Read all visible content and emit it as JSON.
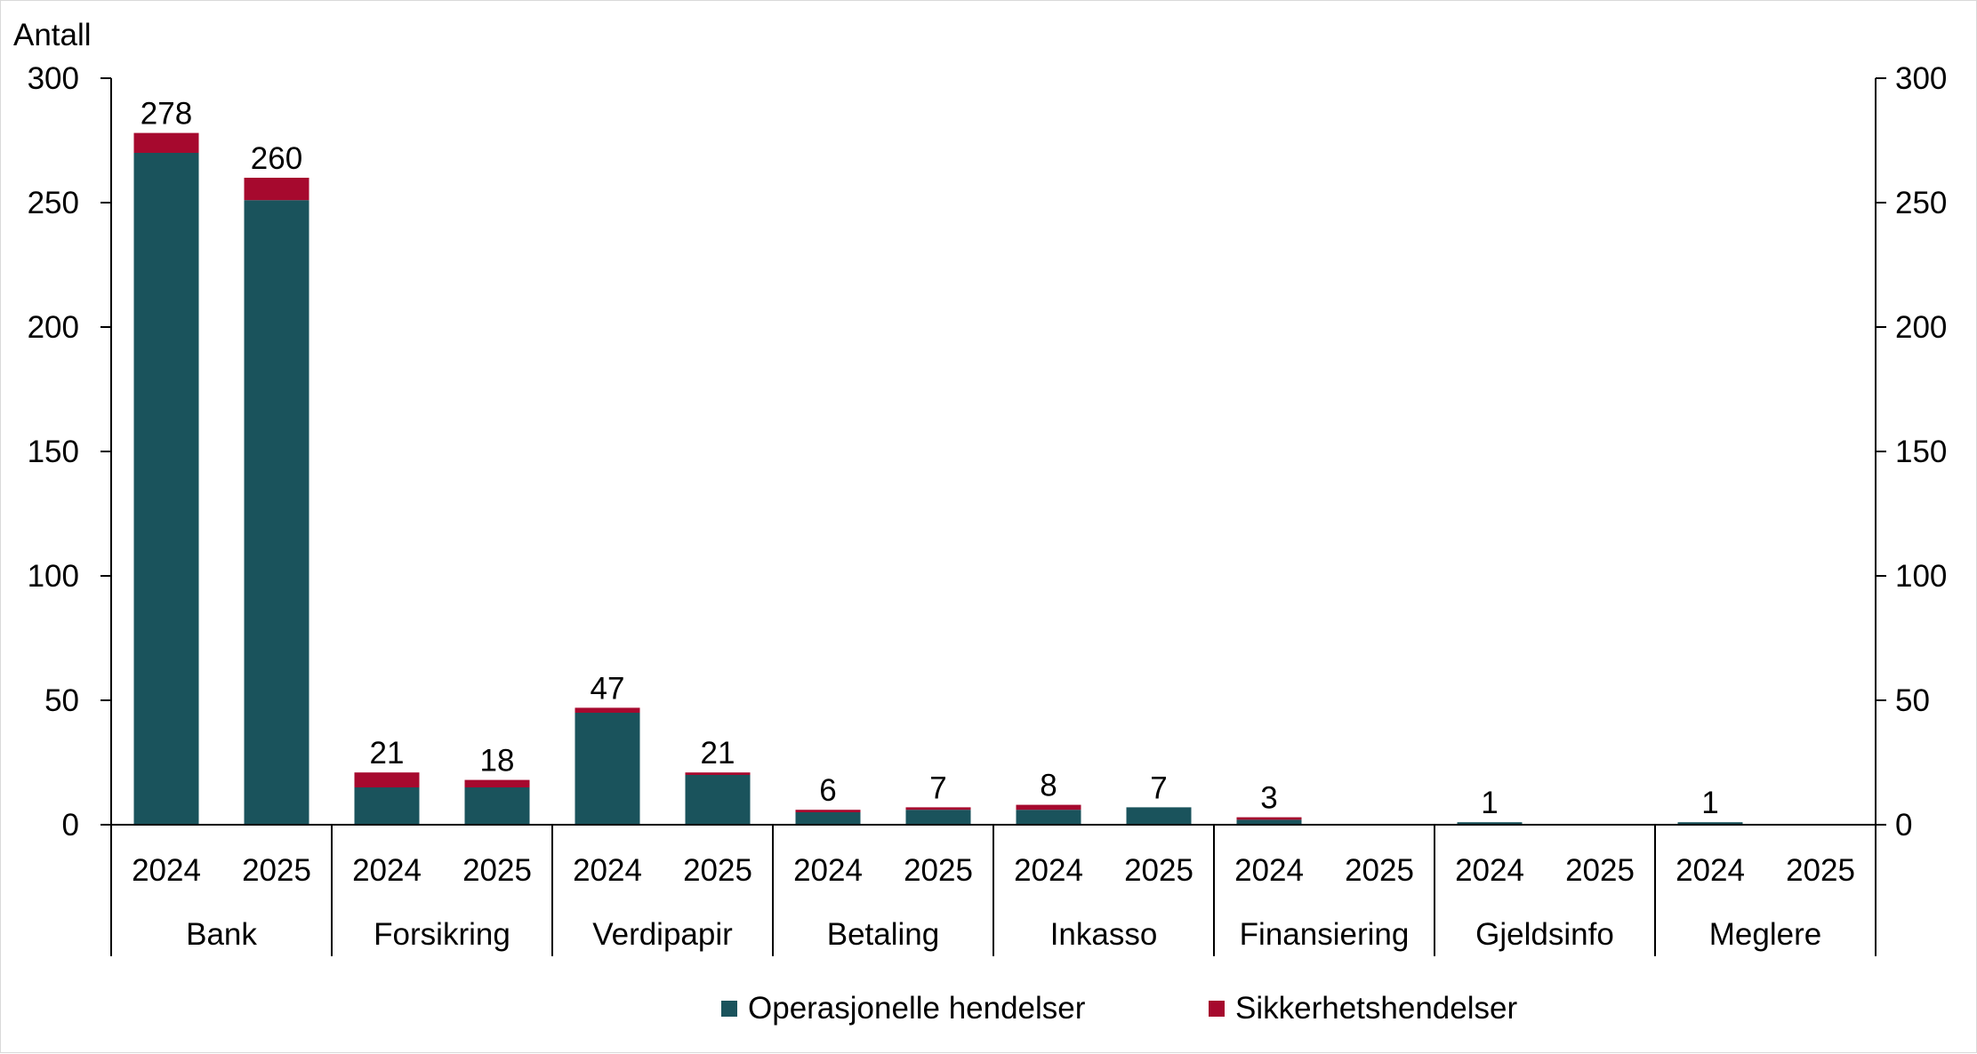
{
  "colors": {
    "operasjonelle": "#1a535c",
    "sikkerhet": "#a6092e",
    "axis": "#000000"
  },
  "chart_data": {
    "type": "bar",
    "stacked": true,
    "ylabel": "Antall",
    "ylim": [
      0,
      300
    ],
    "yticks": [
      0,
      50,
      100,
      150,
      200,
      250,
      300
    ],
    "ytick_labels": [
      "0",
      "50",
      "100",
      "150",
      "200",
      "250",
      "300"
    ],
    "secondary_yaxis": true,
    "grid": false,
    "legend_position": "bottom",
    "groups": [
      {
        "label": "Bank",
        "years": [
          "2024",
          "2025"
        ]
      },
      {
        "label": "Forsikring",
        "years": [
          "2024",
          "2025"
        ]
      },
      {
        "label": "Verdipapir",
        "years": [
          "2024",
          "2025"
        ]
      },
      {
        "label": "Betaling",
        "years": [
          "2024",
          "2025"
        ]
      },
      {
        "label": "Inkasso",
        "years": [
          "2024",
          "2025"
        ]
      },
      {
        "label": "Finansiering",
        "years": [
          "2024",
          "2025"
        ]
      },
      {
        "label": "Gjeldsinfo",
        "years": [
          "2024",
          "2025"
        ]
      },
      {
        "label": "Meglere",
        "years": [
          "2024",
          "2025"
        ]
      }
    ],
    "series": [
      {
        "name": "Operasjonelle hendelser",
        "values": [
          270,
          251,
          15,
          15,
          45,
          20,
          5,
          6,
          6,
          7,
          2,
          0,
          1,
          0,
          1,
          0
        ]
      },
      {
        "name": "Sikkerhetshendelser",
        "values": [
          8,
          9,
          6,
          3,
          2,
          1,
          1,
          1,
          2,
          0,
          1,
          0,
          0,
          0,
          0,
          0
        ]
      }
    ],
    "totals": [
      "278",
      "260",
      "21",
      "18",
      "47",
      "21",
      "6",
      "7",
      "8",
      "7",
      "3",
      "",
      "1",
      "",
      "1",
      ""
    ]
  }
}
